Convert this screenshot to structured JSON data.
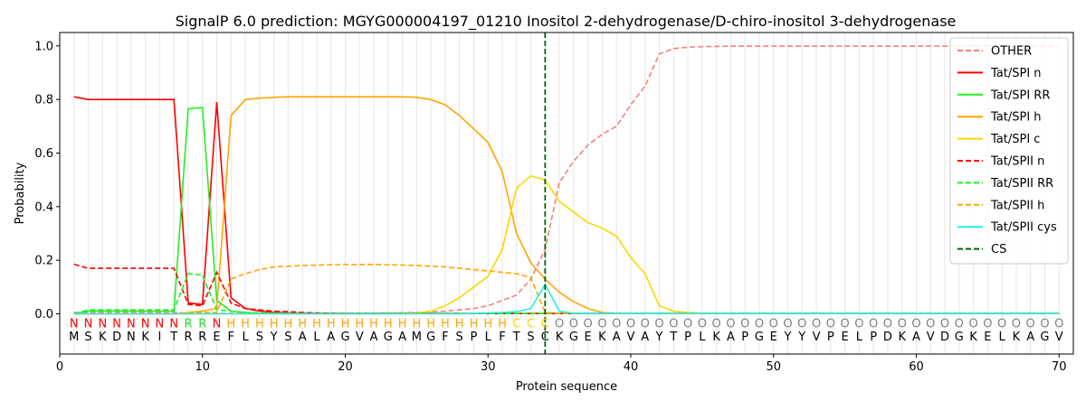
{
  "chart_data": {
    "type": "line",
    "title": "SignalP 6.0 prediction: MGYG000004197_01210 Inositol 2-dehydrogenase/D-chiro-inositol 3-dehydrogenase",
    "xlabel": "Protein sequence",
    "ylabel": "Probability",
    "xlim": [
      0,
      71
    ],
    "ylim": [
      -0.15,
      1.05
    ],
    "xticks": [
      0,
      10,
      20,
      30,
      40,
      50,
      60,
      70
    ],
    "yticks": [
      0.0,
      0.2,
      0.4,
      0.6,
      0.8,
      1.0
    ],
    "x": [
      1,
      2,
      3,
      4,
      5,
      6,
      7,
      8,
      9,
      10,
      11,
      12,
      13,
      14,
      15,
      16,
      17,
      18,
      19,
      20,
      21,
      22,
      23,
      24,
      25,
      26,
      27,
      28,
      29,
      30,
      31,
      32,
      33,
      34,
      35,
      36,
      37,
      38,
      39,
      40,
      41,
      42,
      43,
      44,
      45,
      46,
      47,
      48,
      49,
      50,
      51,
      52,
      53,
      54,
      55,
      56,
      57,
      58,
      59,
      60,
      61,
      62,
      63,
      64,
      65,
      66,
      67,
      68,
      69,
      70
    ],
    "sequence": [
      "M",
      "S",
      "K",
      "D",
      "N",
      "K",
      "I",
      "T",
      "R",
      "R",
      "E",
      "F",
      "L",
      "S",
      "Y",
      "S",
      "A",
      "L",
      "A",
      "G",
      "V",
      "A",
      "G",
      "A",
      "M",
      "G",
      "F",
      "S",
      "P",
      "L",
      "F",
      "T",
      "S",
      "C",
      "K",
      "G",
      "E",
      "K",
      "A",
      "V",
      "A",
      "Y",
      "T",
      "P",
      "L",
      "K",
      "A",
      "P",
      "G",
      "E",
      "Y",
      "Y",
      "V",
      "P",
      "E",
      "L",
      "P",
      "D",
      "K",
      "A",
      "V",
      "D",
      "G",
      "K",
      "E",
      "L",
      "K",
      "A",
      "G",
      "V"
    ],
    "region_labels": [
      "N",
      "N",
      "N",
      "N",
      "N",
      "N",
      "N",
      "N",
      "R",
      "R",
      "N",
      "H",
      "H",
      "H",
      "H",
      "H",
      "H",
      "H",
      "H",
      "H",
      "H",
      "H",
      "H",
      "H",
      "H",
      "H",
      "H",
      "H",
      "H",
      "H",
      "H",
      "C",
      "C",
      "C",
      "O",
      "O",
      "O",
      "O",
      "O",
      "O",
      "O",
      "O",
      "O",
      "O",
      "O",
      "O",
      "O",
      "O",
      "O",
      "O",
      "O",
      "O",
      "O",
      "O",
      "O",
      "O",
      "O",
      "O",
      "O",
      "O",
      "O",
      "O",
      "O",
      "O",
      "O",
      "O",
      "O",
      "O",
      "O",
      "O"
    ],
    "region_colors": {
      "N": "#ff0000",
      "R": "#22dd22",
      "H": "#ffa500",
      "C": "#ffd700",
      "O": "#808080"
    },
    "cleavage_site": 34,
    "legend_position": "upper right",
    "grid": "vertical lines at each residue",
    "series": [
      {
        "name": "OTHER",
        "color": "#f08080",
        "dash": "dashed",
        "values": [
          0.005,
          0.005,
          0.005,
          0.005,
          0.005,
          0.005,
          0.005,
          0.005,
          0.002,
          0.002,
          0.002,
          0.002,
          0.002,
          0.002,
          0.002,
          0.002,
          0.002,
          0.002,
          0.002,
          0.002,
          0.002,
          0.002,
          0.003,
          0.004,
          0.005,
          0.007,
          0.01,
          0.015,
          0.02,
          0.03,
          0.05,
          0.07,
          0.13,
          0.24,
          0.49,
          0.57,
          0.63,
          0.67,
          0.7,
          0.78,
          0.85,
          0.97,
          0.99,
          0.995,
          0.997,
          0.998,
          0.999,
          0.999,
          0.999,
          0.999,
          0.999,
          0.999,
          0.999,
          0.999,
          0.999,
          0.999,
          0.999,
          0.999,
          0.999,
          0.999,
          0.999,
          0.999,
          0.999,
          0.999,
          0.999,
          0.999,
          0.999,
          0.999,
          0.999,
          0.999
        ]
      },
      {
        "name": "Tat/SPI n",
        "color": "#ff0000",
        "dash": "solid",
        "values": [
          0.81,
          0.8,
          0.8,
          0.8,
          0.8,
          0.8,
          0.8,
          0.8,
          0.04,
          0.035,
          0.79,
          0.06,
          0.02,
          0.01,
          0.005,
          0.003,
          0.002,
          0.001,
          0.001,
          0.001,
          0.001,
          0.001,
          0.001,
          0.001,
          0.001,
          0.001,
          0.001,
          0.001,
          0.001,
          0.001,
          0.001,
          0.001,
          0.001,
          0.001,
          0.001,
          0.001,
          0.001,
          0.001,
          0.001,
          0.001,
          0.001,
          0.001,
          0.001,
          0.001,
          0.001,
          0.001,
          0.001,
          0.001,
          0.001,
          0.001,
          0.001,
          0.001,
          0.001,
          0.001,
          0.001,
          0.001,
          0.001,
          0.001,
          0.001,
          0.001,
          0.001,
          0.001,
          0.001,
          0.001,
          0.001,
          0.001,
          0.001,
          0.001,
          0.001,
          0.001
        ]
      },
      {
        "name": "Tat/SPI RR",
        "color": "#22ee22",
        "dash": "solid",
        "values": [
          0.0,
          0.01,
          0.01,
          0.01,
          0.01,
          0.01,
          0.01,
          0.01,
          0.765,
          0.77,
          0.05,
          0.01,
          0.005,
          0.002,
          0.001,
          0.001,
          0.001,
          0.001,
          0.001,
          0.001,
          0.001,
          0.001,
          0.001,
          0.001,
          0.001,
          0.001,
          0.001,
          0.001,
          0.001,
          0.001,
          0.001,
          0.001,
          0.001,
          0.001,
          0.001,
          0.001,
          0.001,
          0.001,
          0.001,
          0.001,
          0.001,
          0.001,
          0.001,
          0.001,
          0.001,
          0.001,
          0.001,
          0.001,
          0.001,
          0.001,
          0.001,
          0.001,
          0.001,
          0.001,
          0.001,
          0.001,
          0.001,
          0.001,
          0.001,
          0.001,
          0.001,
          0.001,
          0.001,
          0.001,
          0.001,
          0.001,
          0.001,
          0.001,
          0.001,
          0.001
        ]
      },
      {
        "name": "Tat/SPI h",
        "color": "#ffa500",
        "dash": "solid",
        "values": [
          0.0,
          0.0,
          0.0,
          0.0,
          0.0,
          0.0,
          0.0,
          0.0,
          0.005,
          0.01,
          0.02,
          0.74,
          0.8,
          0.805,
          0.808,
          0.81,
          0.81,
          0.81,
          0.81,
          0.81,
          0.81,
          0.81,
          0.81,
          0.81,
          0.808,
          0.8,
          0.78,
          0.74,
          0.69,
          0.64,
          0.53,
          0.3,
          0.19,
          0.13,
          0.08,
          0.045,
          0.02,
          0.005,
          0.002,
          0.001,
          0.001,
          0.001,
          0.001,
          0.001,
          0.001,
          0.001,
          0.001,
          0.001,
          0.001,
          0.001,
          0.001,
          0.001,
          0.001,
          0.001,
          0.001,
          0.001,
          0.001,
          0.001,
          0.001,
          0.001,
          0.001,
          0.001,
          0.001,
          0.001,
          0.001,
          0.001,
          0.001,
          0.001,
          0.001,
          0.001
        ]
      },
      {
        "name": "Tat/SPI c",
        "color": "#ffd700",
        "dash": "solid",
        "values": [
          0.0,
          0.0,
          0.0,
          0.0,
          0.0,
          0.0,
          0.0,
          0.0,
          0.0,
          0.0,
          0.0,
          0.0,
          0.0,
          0.0,
          0.0,
          0.0,
          0.0,
          0.0,
          0.0,
          0.0,
          0.0,
          0.0,
          0.001,
          0.002,
          0.003,
          0.01,
          0.03,
          0.06,
          0.1,
          0.14,
          0.24,
          0.47,
          0.515,
          0.5,
          0.42,
          0.38,
          0.34,
          0.32,
          0.29,
          0.21,
          0.15,
          0.03,
          0.01,
          0.005,
          0.002,
          0.001,
          0.001,
          0.001,
          0.001,
          0.001,
          0.001,
          0.001,
          0.001,
          0.001,
          0.001,
          0.001,
          0.001,
          0.001,
          0.001,
          0.001,
          0.001,
          0.001,
          0.001,
          0.001,
          0.001,
          0.001,
          0.001,
          0.001,
          0.001,
          0.001
        ]
      },
      {
        "name": "Tat/SPII n",
        "color": "#ff0000",
        "dash": "dashed",
        "values": [
          0.185,
          0.17,
          0.17,
          0.17,
          0.17,
          0.17,
          0.17,
          0.17,
          0.035,
          0.03,
          0.155,
          0.04,
          0.02,
          0.015,
          0.01,
          0.008,
          0.005,
          0.003,
          0.002,
          0.001,
          0.001,
          0.001,
          0.001,
          0.001,
          0.001,
          0.001,
          0.001,
          0.001,
          0.001,
          0.001,
          0.001,
          0.001,
          0.001,
          0.001,
          0.001,
          0.001,
          0.001,
          0.001,
          0.001,
          0.001,
          0.001,
          0.001,
          0.001,
          0.001,
          0.001,
          0.001,
          0.001,
          0.001,
          0.001,
          0.001,
          0.001,
          0.001,
          0.001,
          0.001,
          0.001,
          0.001,
          0.001,
          0.001,
          0.001,
          0.001,
          0.001,
          0.001,
          0.001,
          0.001,
          0.001,
          0.001,
          0.001,
          0.001,
          0.001,
          0.001
        ]
      },
      {
        "name": "Tat/SPII RR",
        "color": "#22ee22",
        "dash": "dashed",
        "values": [
          0.0,
          0.015,
          0.015,
          0.015,
          0.015,
          0.015,
          0.015,
          0.015,
          0.15,
          0.145,
          0.015,
          0.01,
          0.005,
          0.003,
          0.002,
          0.001,
          0.001,
          0.001,
          0.001,
          0.001,
          0.001,
          0.001,
          0.001,
          0.001,
          0.001,
          0.001,
          0.001,
          0.001,
          0.001,
          0.001,
          0.001,
          0.001,
          0.001,
          0.001,
          0.001,
          0.001,
          0.001,
          0.001,
          0.001,
          0.001,
          0.001,
          0.001,
          0.001,
          0.001,
          0.001,
          0.001,
          0.001,
          0.001,
          0.001,
          0.001,
          0.001,
          0.001,
          0.001,
          0.001,
          0.001,
          0.001,
          0.001,
          0.001,
          0.001,
          0.001,
          0.001,
          0.001,
          0.001,
          0.001,
          0.001,
          0.001,
          0.001,
          0.001,
          0.001,
          0.001
        ]
      },
      {
        "name": "Tat/SPII h",
        "color": "#ffa500",
        "dash": "dashed",
        "values": [
          0.0,
          0.0,
          0.0,
          0.0,
          0.0,
          0.0,
          0.0,
          0.0,
          0.002,
          0.005,
          0.005,
          0.13,
          0.15,
          0.165,
          0.175,
          0.178,
          0.18,
          0.182,
          0.183,
          0.184,
          0.184,
          0.184,
          0.183,
          0.182,
          0.18,
          0.178,
          0.175,
          0.17,
          0.165,
          0.16,
          0.155,
          0.15,
          0.135,
          0.005,
          0.002,
          0.001,
          0.001,
          0.001,
          0.001,
          0.001,
          0.001,
          0.001,
          0.001,
          0.001,
          0.001,
          0.001,
          0.001,
          0.001,
          0.001,
          0.001,
          0.001,
          0.001,
          0.001,
          0.001,
          0.001,
          0.001,
          0.001,
          0.001,
          0.001,
          0.001,
          0.001,
          0.001,
          0.001,
          0.001,
          0.001,
          0.001,
          0.001,
          0.001,
          0.001,
          0.001
        ]
      },
      {
        "name": "Tat/SPII cys",
        "color": "#22eeee",
        "dash": "solid",
        "values": [
          0.0,
          0.0,
          0.0,
          0.0,
          0.0,
          0.0,
          0.0,
          0.0,
          0.0,
          0.0,
          0.0,
          0.0,
          0.0,
          0.0,
          0.0,
          0.0,
          0.0,
          0.0,
          0.0,
          0.0,
          0.0,
          0.0,
          0.0,
          0.0,
          0.0,
          0.0,
          0.0,
          0.0,
          0.002,
          0.003,
          0.005,
          0.008,
          0.02,
          0.11,
          0.01,
          0.002,
          0.001,
          0.001,
          0.001,
          0.001,
          0.001,
          0.001,
          0.001,
          0.001,
          0.001,
          0.001,
          0.001,
          0.001,
          0.001,
          0.001,
          0.001,
          0.001,
          0.001,
          0.001,
          0.001,
          0.001,
          0.001,
          0.001,
          0.001,
          0.001,
          0.001,
          0.001,
          0.001,
          0.001,
          0.001,
          0.001,
          0.001,
          0.001,
          0.001,
          0.001
        ]
      }
    ],
    "cs_series": {
      "name": "CS",
      "color": "#006400",
      "dash": "dashed"
    }
  }
}
